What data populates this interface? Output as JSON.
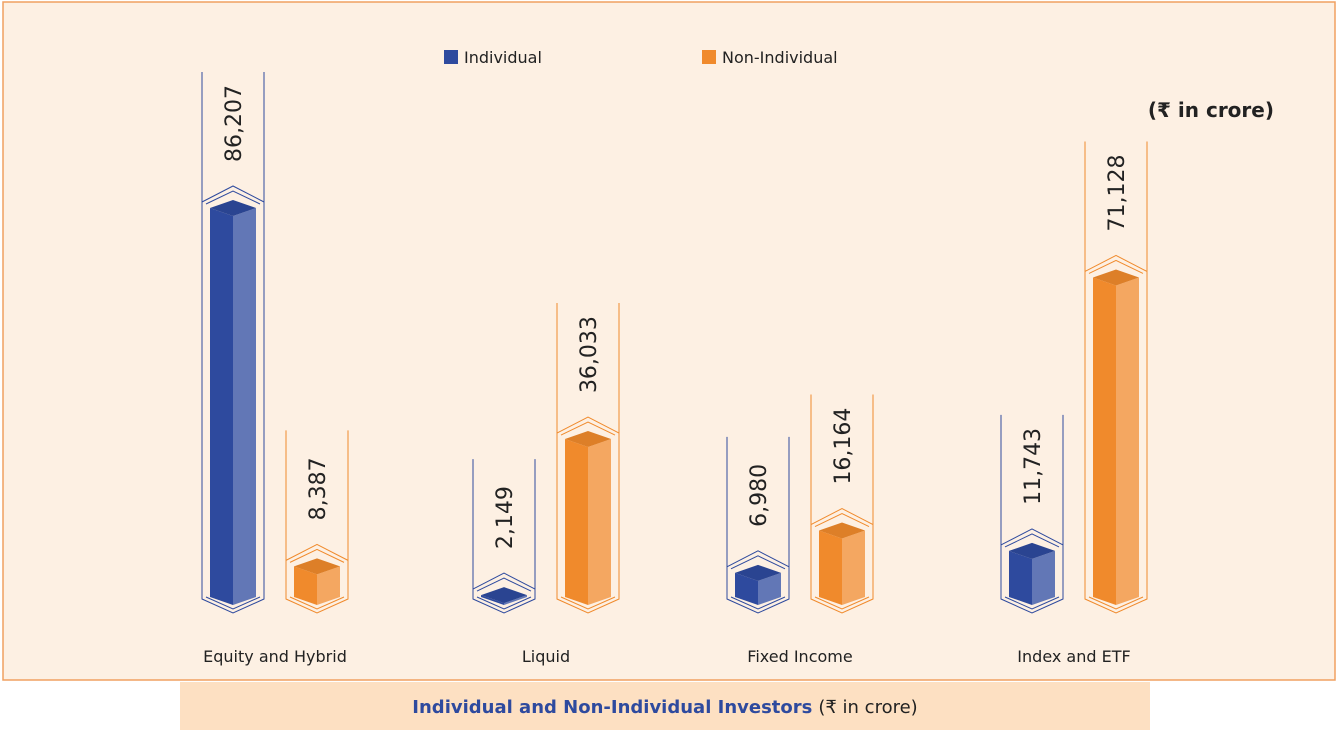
{
  "chart_data": {
    "type": "bar3d",
    "title": "Individual and Non-Individual Investors",
    "title_unit": "(₹ in crore)",
    "unit_label": "(₹ in crore)",
    "categories": [
      "Equity and Hybrid",
      "Liquid",
      "Fixed Income",
      "Index and ETF"
    ],
    "series": [
      {
        "name": "Individual",
        "color": "#2e4a9e",
        "values": [
          86207,
          2149,
          6980,
          11743
        ],
        "value_labels": [
          "86,207",
          "2,149",
          "6,980",
          "11,743"
        ]
      },
      {
        "name": "Non-Individual",
        "color": "#f08a2c",
        "values": [
          8387,
          36033,
          16164,
          71128
        ],
        "value_labels": [
          "8,387",
          "36,033",
          "16,164",
          "71,128"
        ]
      }
    ],
    "legend": "top"
  }
}
